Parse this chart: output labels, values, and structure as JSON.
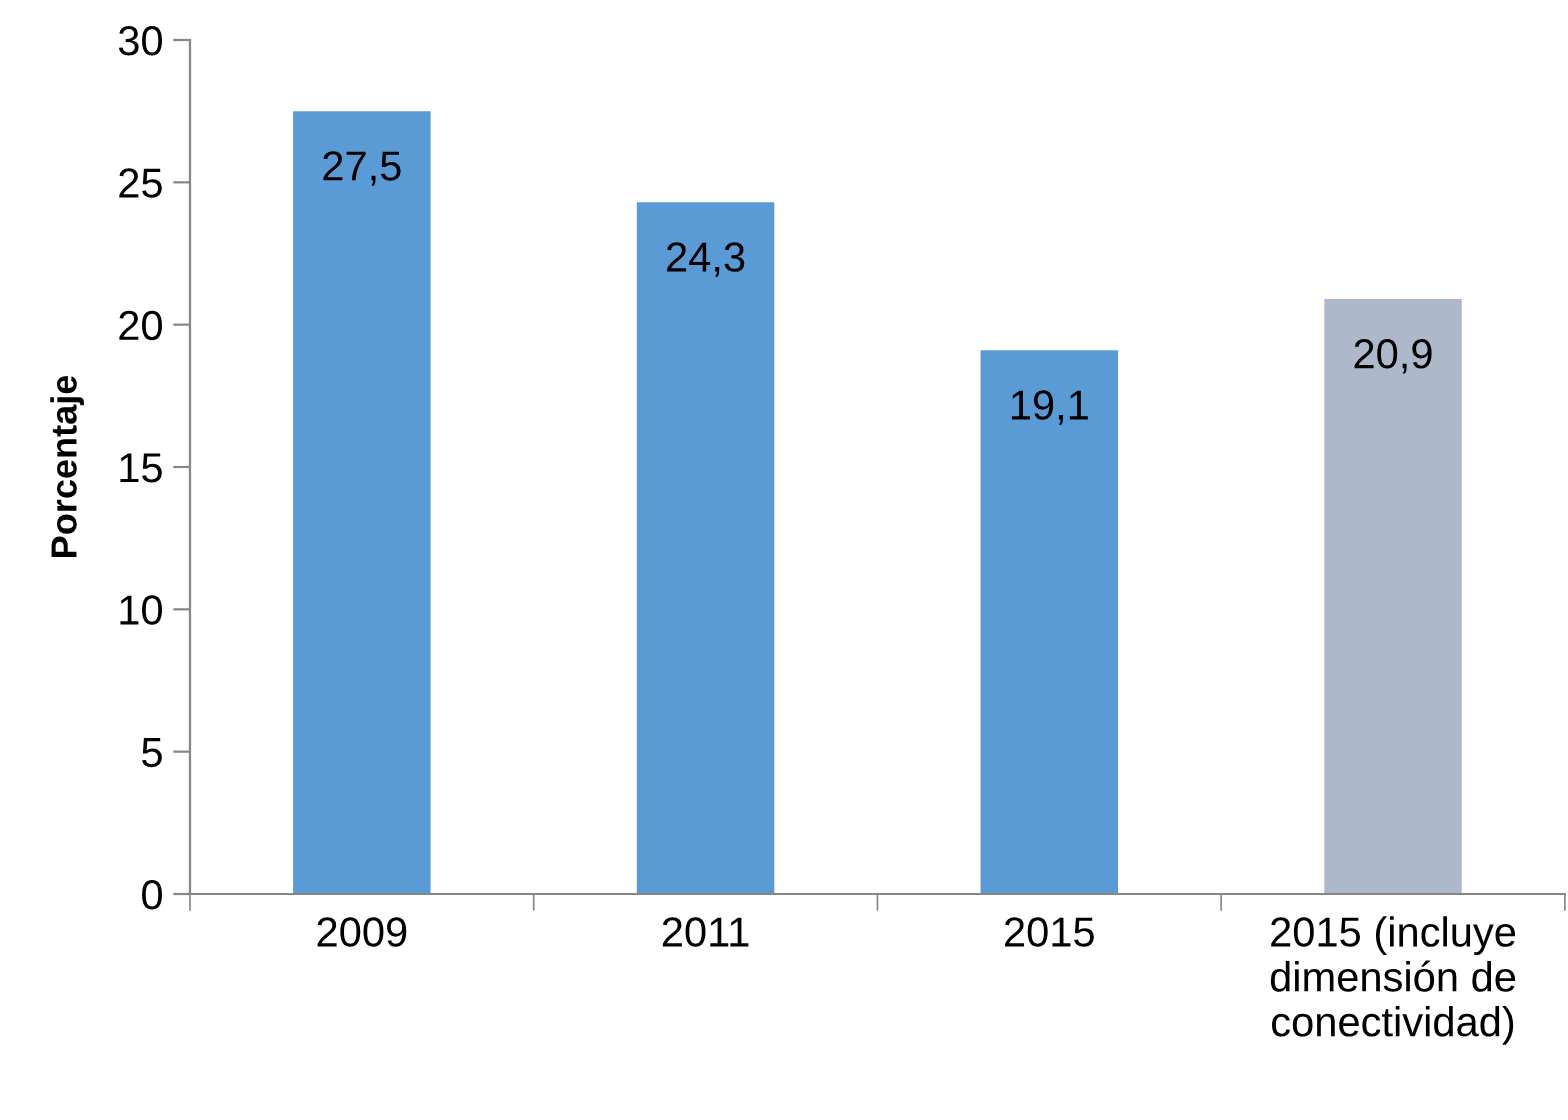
{
  "chart_data": {
    "type": "bar",
    "ylabel": "Porcentaje",
    "categories": [
      "2009",
      "2011",
      "2015",
      "2015 (incluye\ndimensión de\nconectividad)"
    ],
    "values": [
      27.5,
      24.3,
      19.1,
      20.9
    ],
    "colors": [
      "#5b9bd5",
      "#5b9bd5",
      "#5b9bd5",
      "#adb9ca"
    ],
    "value_labels": [
      "27,5",
      "24,3",
      "19,1",
      "20,9"
    ],
    "ylim": [
      0,
      30
    ],
    "yticks": [
      0,
      5,
      10,
      15,
      20,
      25,
      30
    ],
    "grid": false,
    "legend": false
  }
}
